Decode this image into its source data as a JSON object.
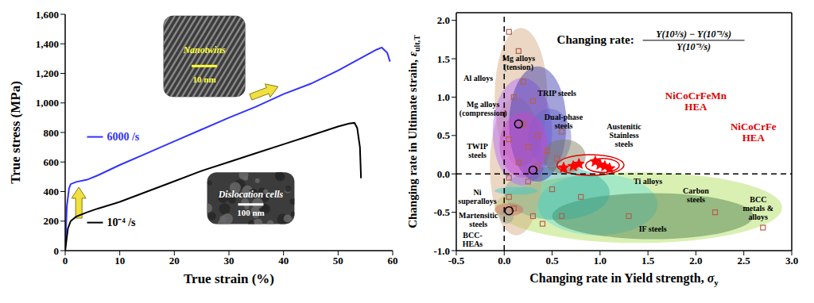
{
  "chart_data": [
    {
      "type": "line",
      "xlabel": "True strain (%)",
      "ylabel": "True stress (MPa)",
      "xlim": [
        0,
        60
      ],
      "ylim": [
        0,
        1600
      ],
      "xticks": [
        0,
        10,
        20,
        30,
        40,
        50,
        60
      ],
      "yticks": [
        0,
        200,
        400,
        600,
        800,
        {
          "value": 1000,
          "label": "1,000"
        },
        {
          "value": 1200,
          "label": "1,200"
        },
        {
          "value": 1400,
          "label": "1,400"
        },
        {
          "value": 1600,
          "label": "1,600"
        }
      ],
      "series": [
        {
          "name": "6000 /s",
          "color": "#3333ff",
          "x": [
            0,
            0.3,
            0.7,
            1,
            2,
            4,
            6,
            8,
            10,
            15,
            20,
            25,
            30,
            35,
            40,
            45,
            50,
            54,
            57,
            58,
            59,
            59.5
          ],
          "values": [
            0,
            300,
            420,
            450,
            465,
            480,
            510,
            545,
            580,
            660,
            740,
            820,
            900,
            975,
            1060,
            1130,
            1220,
            1300,
            1360,
            1375,
            1340,
            1280
          ],
          "label_xy": [
            4,
            770
          ]
        },
        {
          "name": "10⁻⁴ /s",
          "color": "#000000",
          "x": [
            0,
            0.5,
            1,
            2,
            4,
            6,
            10,
            15,
            20,
            25,
            30,
            35,
            40,
            45,
            50,
            52,
            53,
            53.5,
            54,
            54.2
          ],
          "values": [
            0,
            150,
            200,
            230,
            260,
            285,
            330,
            400,
            470,
            540,
            600,
            660,
            720,
            780,
            840,
            860,
            865,
            830,
            700,
            490
          ],
          "label_xy": [
            4,
            190
          ]
        }
      ],
      "insets": [
        {
          "texts": [
            "Nanotwins",
            "10 nm"
          ],
          "color": "#ffff33",
          "x": [
            18,
            33
          ],
          "y": [
            1040,
            1590
          ]
        },
        {
          "texts": [
            "Dislocation cells",
            "100 nm"
          ],
          "color": "#ffffff",
          "x": [
            26,
            42
          ],
          "y": [
            180,
            530
          ]
        }
      ],
      "arrows": [
        {
          "from": [
            2.5,
            220
          ],
          "to": [
            2.5,
            430
          ],
          "color": "#f0e040"
        },
        {
          "from": [
            34,
            1040
          ],
          "to": [
            39,
            1110
          ],
          "color": "#f0e040"
        }
      ]
    },
    {
      "type": "scatter",
      "title": "Changing rate:",
      "formula": {
        "numerator": "Y(10³/s) − Y(10⁻³/s)",
        "denominator": "Y(10⁻³/s)"
      },
      "title_xy": [
        0.55,
        1.75
      ],
      "xlabel": {
        "text": "Changing rate in Yield strength, ",
        "symbol": "σ",
        "subscript": "y"
      },
      "ylabel": {
        "text": "Changing rate in Ultimate strain, ",
        "symbol": "ε",
        "subscript": "ult,T"
      },
      "xlim": [
        -0.5,
        3
      ],
      "ylim": [
        -1,
        2.1
      ],
      "xticks": [
        -0.5,
        {
          "value": 0,
          "label": "0.0"
        },
        0.5,
        {
          "value": 1,
          "label": "1.0"
        },
        1.5,
        {
          "value": 2,
          "label": "2.0"
        },
        2.5,
        {
          "value": 3,
          "label": "3.0"
        }
      ],
      "yticks": [
        {
          "value": -1,
          "label": "-1.0"
        },
        -0.5,
        {
          "value": 0,
          "label": "0.0"
        },
        0.5,
        {
          "value": 1,
          "label": "1.0"
        },
        1.5,
        {
          "value": 2,
          "label": "2.0"
        }
      ],
      "dashed_lines": {
        "x": 0,
        "y": 0
      },
      "regions": [
        {
          "x": [
            -0.1,
            2.9
          ],
          "y": [
            -0.9,
            0.02
          ],
          "color": "#aadd55",
          "outline": false
        },
        {
          "x": [
            0.35,
            1.6
          ],
          "y": [
            -0.8,
            0.0
          ],
          "color": "#66dddd",
          "outline": false
        },
        {
          "x": [
            0.5,
            2.6
          ],
          "y": [
            -0.85,
            -0.25
          ],
          "color": "#447744",
          "outline": false
        },
        {
          "x": [
            0.0,
            1.1
          ],
          "y": [
            -0.6,
            0.1
          ],
          "color": "#33aa99",
          "outline": false
        },
        {
          "x": [
            -0.1,
            0.45
          ],
          "y": [
            0.1,
            1.9
          ],
          "color": "#d2a679",
          "outline": false
        },
        {
          "x": [
            -0.15,
            0.4
          ],
          "y": [
            -0.8,
            1.0
          ],
          "color": "#d2a679",
          "outline": false
        },
        {
          "x": [
            -0.12,
            0.5
          ],
          "y": [
            -0.15,
            1.25
          ],
          "color": "#b266ff",
          "outline": false
        },
        {
          "x": [
            0.05,
            0.65
          ],
          "y": [
            -0.1,
            1.4
          ],
          "color": "#3333aa",
          "outline": false
        },
        {
          "x": [
            0.25,
            0.7
          ],
          "y": [
            0.1,
            0.85
          ],
          "color": "#6666cc",
          "outline": false
        },
        {
          "x": [
            0.4,
            0.85
          ],
          "y": [
            0.0,
            0.45
          ],
          "color": "#777755",
          "outline": false
        },
        {
          "x": [
            -0.05,
            0.45
          ],
          "y": [
            -0.05,
            0.8
          ],
          "color": "#cc44cc",
          "outline": false
        },
        {
          "x": [
            -0.1,
            0.35
          ],
          "y": [
            -0.27,
            -0.17
          ],
          "color": "#33cccc",
          "outline": false
        },
        {
          "x": [
            -0.1,
            0.2
          ],
          "y": [
            -0.55,
            -0.38
          ],
          "color": "#cc6666",
          "outline": false
        },
        {
          "x": [
            -0.05,
            0.1
          ],
          "y": [
            -0.65,
            -0.45
          ],
          "color": "#999999",
          "outline": false
        },
        {
          "x": [
            0.55,
            1.25
          ],
          "y": [
            -0.02,
            0.25
          ],
          "color": "#e00000",
          "outline": true
        },
        {
          "x": [
            0.85,
            1.2
          ],
          "y": [
            0.02,
            0.2
          ],
          "color": "#e00000",
          "outline": true
        }
      ],
      "series": [
        {
          "marker": "square",
          "color": "#b5604a",
          "points": [
            [
              0.05,
              1.85
            ],
            [
              0.15,
              1.6
            ],
            [
              0.2,
              1.2
            ],
            [
              0.1,
              1.0
            ],
            [
              0.3,
              0.95
            ],
            [
              0.2,
              0.65
            ],
            [
              0.35,
              0.5
            ],
            [
              0.05,
              0.45
            ],
            [
              0.25,
              0.35
            ],
            [
              0.45,
              0.3
            ],
            [
              0.6,
              0.55
            ],
            [
              0.15,
              0.15
            ],
            [
              0.35,
              0.1
            ],
            [
              0.55,
              0.2
            ],
            [
              0.05,
              -0.05
            ],
            [
              0.25,
              -0.1
            ],
            [
              0.5,
              -0.2
            ],
            [
              0.8,
              -0.3
            ],
            [
              0.1,
              -0.45
            ],
            [
              0.3,
              -0.55
            ],
            [
              0.6,
              -0.55
            ],
            [
              1.3,
              -0.55
            ],
            [
              2.2,
              -0.5
            ],
            [
              2.7,
              -0.7
            ],
            [
              0.05,
              -0.3
            ],
            [
              0.4,
              -0.65
            ]
          ]
        },
        {
          "marker": "circle",
          "color": "#000000",
          "points": [
            [
              0.15,
              0.65
            ],
            [
              0.3,
              0.05
            ],
            [
              0.05,
              -0.48
            ]
          ]
        },
        {
          "marker": "star",
          "color": "#ff0000",
          "points": [
            [
              0.72,
              0.1
            ],
            [
              0.78,
              0.13
            ],
            [
              0.95,
              0.16
            ],
            [
              1.0,
              0.12
            ]
          ]
        },
        {
          "marker": "star",
          "color": "#ff0000",
          "points": [
            [
              0.62,
              0.08
            ],
            [
              1.05,
              0.1
            ],
            [
              1.1,
              0.07
            ]
          ]
        }
      ],
      "annotations": [
        {
          "text": [
            "Mg alloys",
            "(tension)"
          ],
          "xy": [
            0.15,
            1.45
          ],
          "color": "#000000"
        },
        {
          "text": [
            "Al alloys"
          ],
          "xy": [
            -0.27,
            1.25
          ],
          "color": "#000000"
        },
        {
          "text": [
            "Mg alloys",
            "(compression)"
          ],
          "xy": [
            -0.22,
            0.85
          ],
          "color": "#000000"
        },
        {
          "text": [
            "TRIP steels"
          ],
          "xy": [
            0.55,
            1.05
          ],
          "color": "#000000"
        },
        {
          "text": [
            "Dual-phase",
            "steels"
          ],
          "xy": [
            0.62,
            0.68
          ],
          "color": "#000000"
        },
        {
          "text": [
            "Austenitic",
            "Stainless",
            "steels"
          ],
          "xy": [
            1.25,
            0.5
          ],
          "color": "#000000"
        },
        {
          "text": [
            "TWIP",
            "steels"
          ],
          "xy": [
            -0.28,
            0.3
          ],
          "color": "#000000"
        },
        {
          "text": [
            "Ni",
            "superalloys"
          ],
          "xy": [
            -0.28,
            -0.3
          ],
          "color": "#000000"
        },
        {
          "text": [
            "Martensitic",
            "steels"
          ],
          "xy": [
            -0.27,
            -0.6
          ],
          "color": "#000000"
        },
        {
          "text": [
            "BCC-",
            "HEAs"
          ],
          "xy": [
            -0.33,
            -0.86
          ],
          "color": "#000000"
        },
        {
          "text": [
            "Ti alloys"
          ],
          "xy": [
            1.5,
            -0.1
          ],
          "color": "#000000"
        },
        {
          "text": [
            "Carbon",
            "steels"
          ],
          "xy": [
            2.0,
            -0.28
          ],
          "color": "#000000"
        },
        {
          "text": [
            "BCC",
            "metals &",
            "alloys"
          ],
          "xy": [
            2.65,
            -0.45
          ],
          "color": "#000000"
        },
        {
          "text": [
            "IF steels"
          ],
          "xy": [
            1.55,
            -0.72
          ],
          "color": "#000000"
        },
        {
          "text": [
            "NiCoCrFeMn",
            "HEA"
          ],
          "xy": [
            2.0,
            0.95
          ],
          "color": "#e00000"
        },
        {
          "text": [
            "NiCoCrFe",
            "HEA"
          ],
          "xy": [
            2.6,
            0.55
          ],
          "color": "#e00000"
        }
      ]
    }
  ]
}
